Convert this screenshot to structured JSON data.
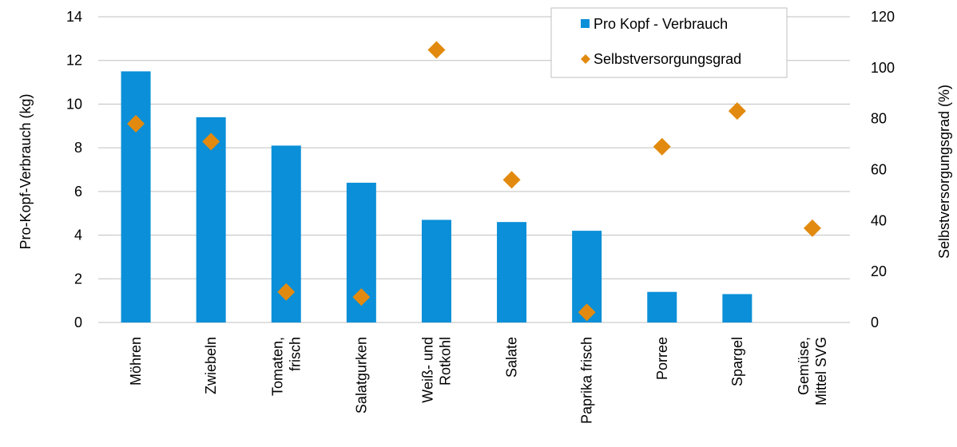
{
  "chart_data": {
    "type": "bar+scatter",
    "categories": [
      [
        "Möhren"
      ],
      [
        "Zwiebeln"
      ],
      [
        "Tomaten,",
        "frisch"
      ],
      [
        "Salatgurken"
      ],
      [
        "Weiß- und",
        "Rotkohl"
      ],
      [
        "Salate"
      ],
      [
        "Paprika frisch"
      ],
      [
        "Porree"
      ],
      [
        "Spargel"
      ],
      [
        "Gemüse,",
        "Mittel SVG"
      ]
    ],
    "series": [
      {
        "name": "Pro Kopf - Verbrauch",
        "type": "bar",
        "axis": "left",
        "color": "#0A8FD8",
        "values": [
          11.5,
          9.4,
          8.1,
          6.4,
          4.7,
          4.6,
          4.2,
          1.4,
          1.3,
          null
        ]
      },
      {
        "name": "Selbstversorgungsgrad",
        "type": "scatter",
        "marker": "diamond",
        "axis": "right",
        "color": "#E28A0F",
        "values": [
          78,
          71,
          12,
          10,
          107,
          56,
          4,
          69,
          83,
          37
        ]
      }
    ],
    "y_left": {
      "label": "Pro-Kopf-Verbrauch (kg)",
      "min": 0,
      "max": 14,
      "ticks": [
        "0",
        "2",
        "4",
        "6",
        "8",
        "10",
        "12",
        "14"
      ]
    },
    "y_right": {
      "label": "Selbstversorgungsgrad (%)",
      "min": 0,
      "max": 120,
      "ticks": [
        "0",
        "20",
        "40",
        "60",
        "80",
        "100",
        "120"
      ]
    },
    "grid": true,
    "gridColor": "#bfbfbf",
    "legend": "top-right"
  }
}
